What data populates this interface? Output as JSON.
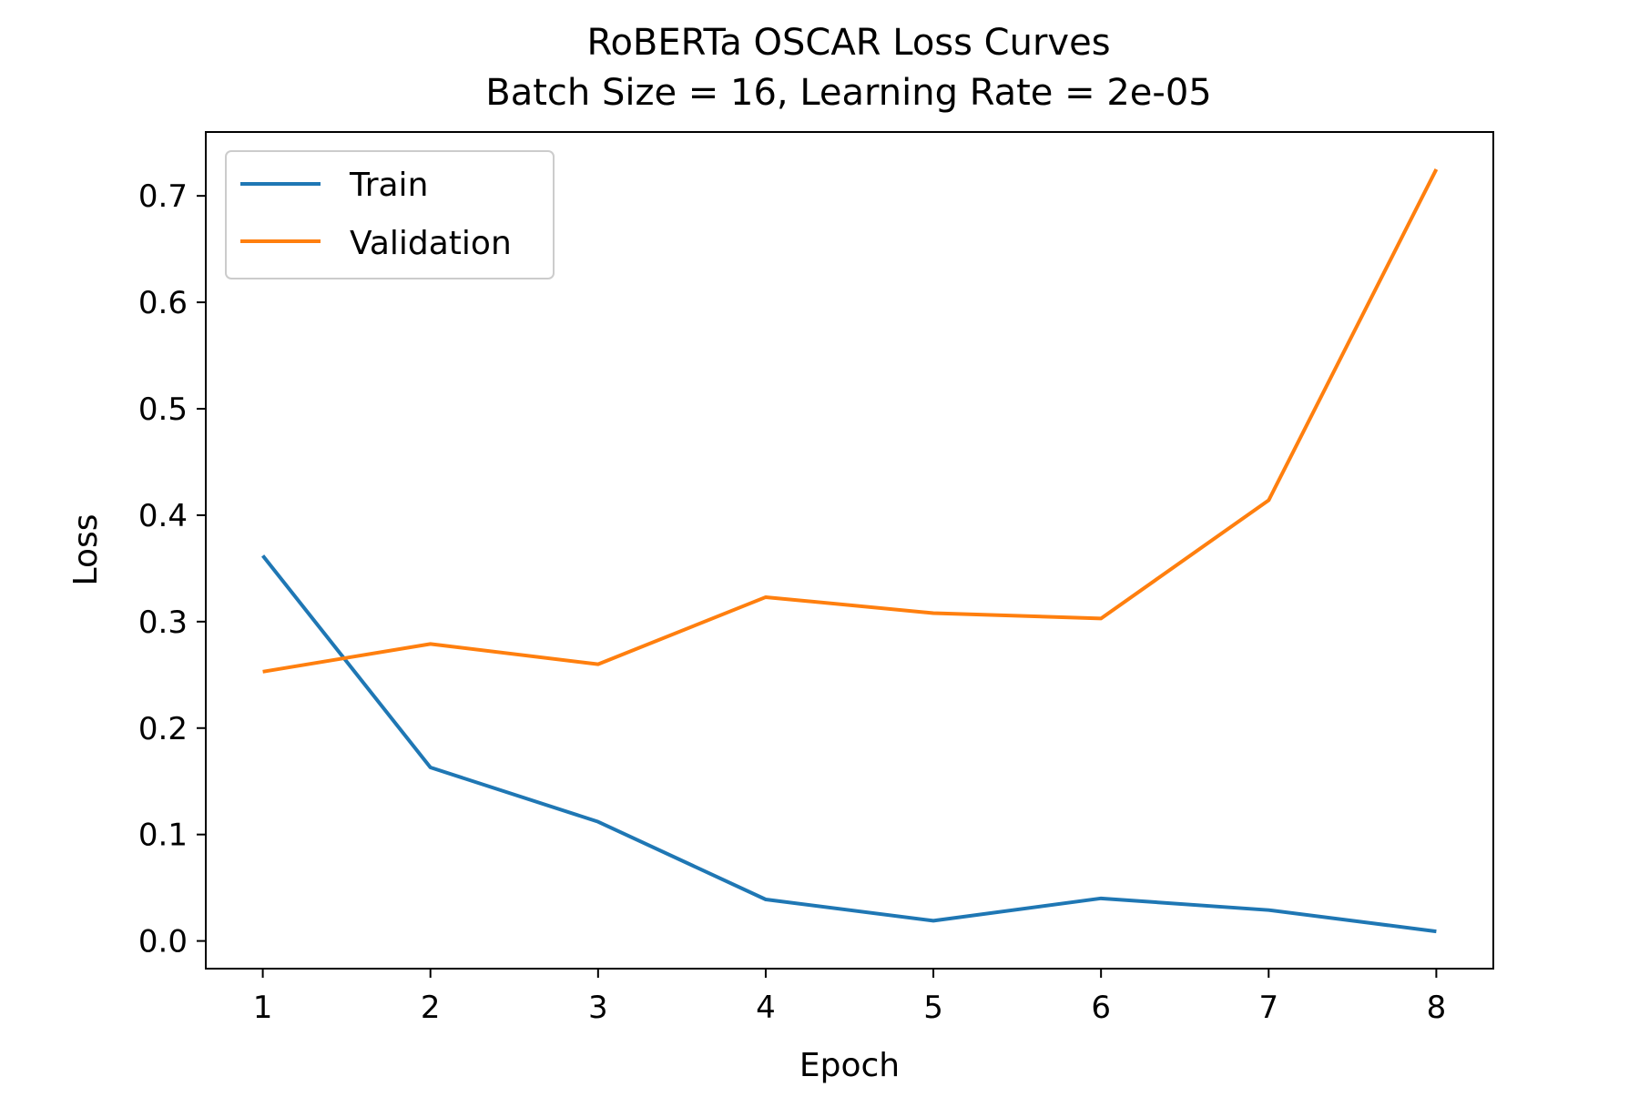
{
  "chart_data": {
    "type": "line",
    "title": "RoBERTa OSCAR Loss Curves",
    "subtitle": "Batch Size = 16, Learning Rate = 2e-05",
    "xlabel": "Epoch",
    "ylabel": "Loss",
    "x": [
      1,
      2,
      3,
      4,
      5,
      6,
      7,
      8
    ],
    "xlim": [
      0.66,
      8.34
    ],
    "ylim": [
      -0.026,
      0.76
    ],
    "xticks": [
      1,
      2,
      3,
      4,
      5,
      6,
      7,
      8
    ],
    "yticks": [
      0.0,
      0.1,
      0.2,
      0.3,
      0.4,
      0.5,
      0.6,
      0.7
    ],
    "ytick_labels": [
      "0.0",
      "0.1",
      "0.2",
      "0.3",
      "0.4",
      "0.5",
      "0.6",
      "0.7"
    ],
    "grid": false,
    "legend_position": "top-left",
    "series": [
      {
        "name": "Train",
        "color": "#1f77b4",
        "values": [
          0.362,
          0.163,
          0.112,
          0.039,
          0.019,
          0.04,
          0.029,
          0.009
        ]
      },
      {
        "name": "Validation",
        "color": "#ff7f0e",
        "values": [
          0.253,
          0.279,
          0.26,
          0.323,
          0.308,
          0.303,
          0.414,
          0.725
        ]
      }
    ]
  }
}
